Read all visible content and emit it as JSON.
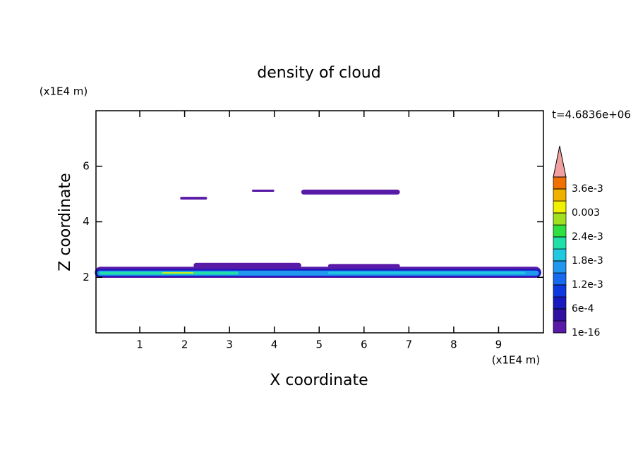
{
  "chart_data": {
    "type": "contour",
    "title": "density of cloud",
    "x_label": "X coordinate",
    "y_label": "Z coordinate",
    "x_unit": "(x1E4 m)",
    "y_unit": "(x1E4 m)",
    "time_label": "t=4.6836e+06",
    "xlim": [
      0,
      10
    ],
    "ylim": [
      0,
      8
    ],
    "xticks": [
      1,
      2,
      3,
      4,
      5,
      6,
      7,
      8,
      9
    ],
    "yticks": [
      2,
      4,
      6
    ],
    "colorbar": {
      "clim": [
        0,
        0.0039
      ],
      "ticks": [
        {
          "value": 1e-16,
          "label": "1e-16"
        },
        {
          "value": 0.0006,
          "label": "6e-4"
        },
        {
          "value": 0.0012,
          "label": "1.2e-3"
        },
        {
          "value": 0.0018,
          "label": "1.8e-3"
        },
        {
          "value": 0.0024,
          "label": "2.4e-3"
        },
        0.003,
        {
          "value": 0.0036,
          "label": "3.6e-3"
        }
      ],
      "colors": [
        "#5a1aa8",
        "#3010a0",
        "#1a18c0",
        "#1038e0",
        "#1868f0",
        "#2098f0",
        "#20c8e0",
        "#20e0a8",
        "#30e040",
        "#a0e020",
        "#f0f000",
        "#f0b000",
        "#f07000"
      ],
      "over_color": "#f0a0a0"
    },
    "patches": [
      {
        "x": [
          0,
          9.95
        ],
        "z": [
          1.98,
          2.38
        ],
        "color": "#5a1aa8"
      },
      {
        "x": [
          0,
          9.95
        ],
        "z": [
          2.02,
          2.3
        ],
        "color": "#1a18c0"
      },
      {
        "x": [
          0.05,
          9.9
        ],
        "z": [
          2.06,
          2.24
        ],
        "color": "#2098f0"
      },
      {
        "x": [
          0.1,
          3.2
        ],
        "z": [
          2.1,
          2.2
        ],
        "color": "#20e0a8"
      },
      {
        "x": [
          5.2,
          9.6
        ],
        "z": [
          2.12,
          2.2
        ],
        "color": "#20c8e0"
      },
      {
        "x": [
          1.5,
          2.2
        ],
        "z": [
          2.14,
          2.18
        ],
        "color": "#f0f000"
      },
      {
        "x": [
          2.2,
          4.6
        ],
        "z": [
          2.34,
          2.52
        ],
        "color": "#5a1aa8"
      },
      {
        "x": [
          5.2,
          6.8
        ],
        "z": [
          2.34,
          2.48
        ],
        "color": "#5a1aa8"
      },
      {
        "x": [
          1.9,
          2.5
        ],
        "z": [
          4.8,
          4.9
        ],
        "color": "#5a1aa8"
      },
      {
        "x": [
          3.5,
          4.0
        ],
        "z": [
          5.08,
          5.16
        ],
        "color": "#5a1aa8"
      },
      {
        "x": [
          4.6,
          6.8
        ],
        "z": [
          4.98,
          5.16
        ],
        "color": "#5a1aa8"
      }
    ]
  }
}
